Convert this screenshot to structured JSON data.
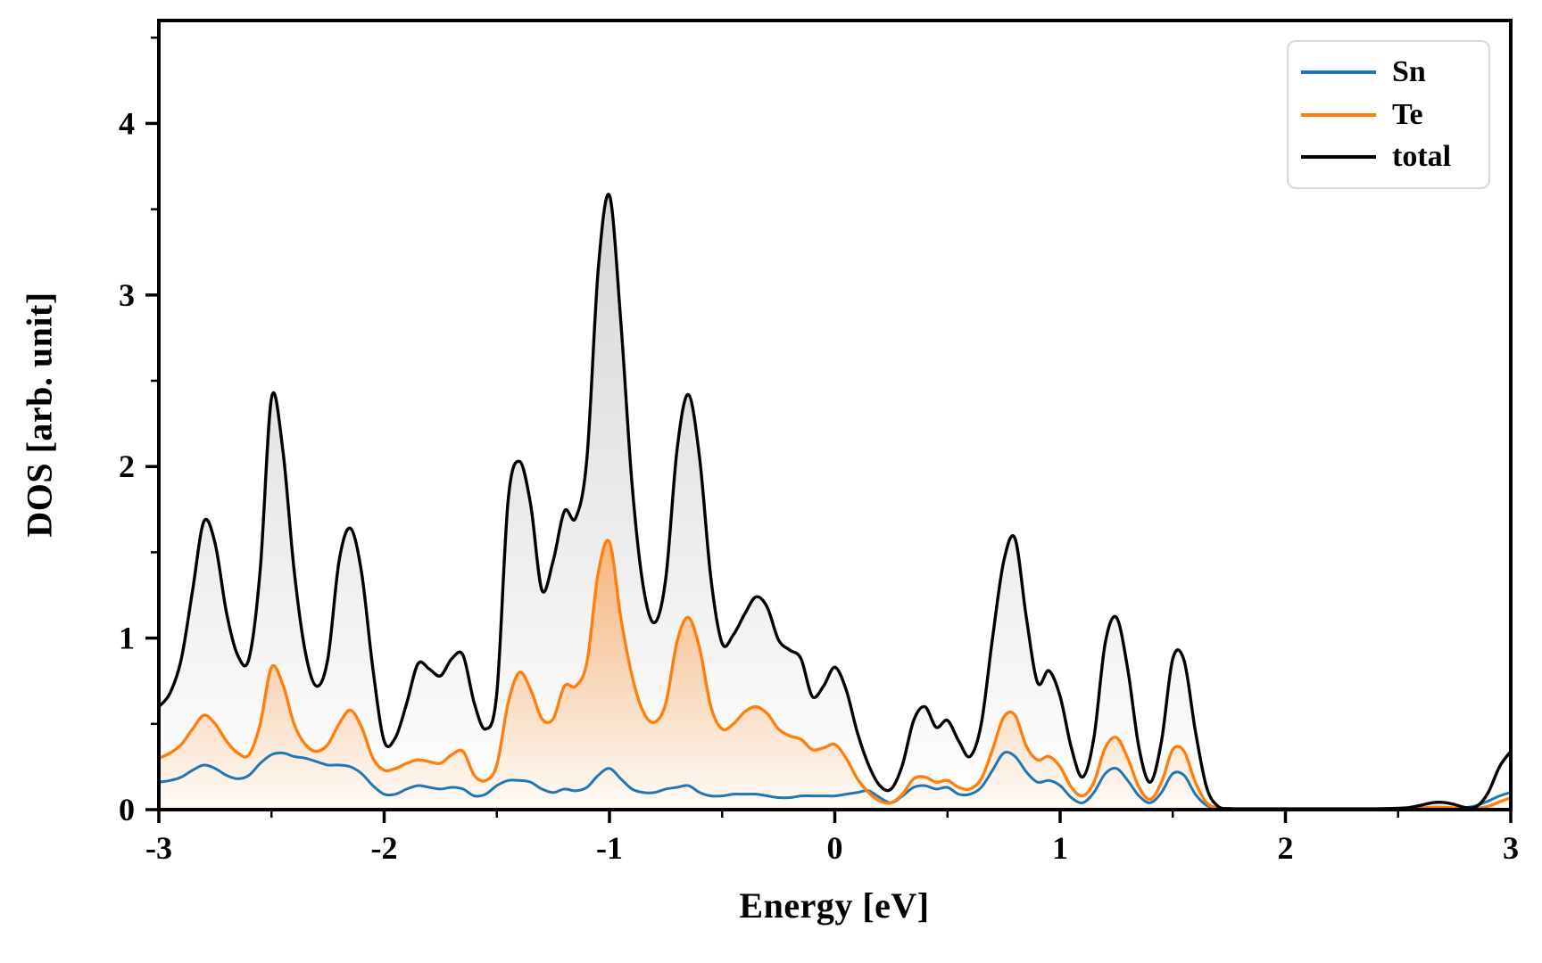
{
  "figure": {
    "background": "#ffffff",
    "spine_color": "#000000"
  },
  "chart_data": {
    "type": "line",
    "title": "",
    "xlabel": "Energy [eV]",
    "ylabel": "DOS [arb. unit]",
    "xlim": [
      -3,
      3
    ],
    "ylim": [
      0,
      4.6
    ],
    "grid": false,
    "legend_position": "upper right",
    "x_ticks": [
      -3,
      -2,
      -1,
      0,
      1,
      2,
      3
    ],
    "x_tick_labels": [
      "-3",
      "-2",
      "-1",
      "0",
      "1",
      "2",
      "3"
    ],
    "x_minor_ticks": [
      -2.5,
      -1.5,
      -0.5,
      0.5,
      1.5,
      2.5
    ],
    "y_ticks": [
      0,
      1,
      2,
      3,
      4
    ],
    "y_tick_labels": [
      "0",
      "1",
      "2",
      "3",
      "4"
    ],
    "y_minor_ticks": [
      0.5,
      1.5,
      2.5,
      3.5,
      4.5
    ],
    "x_start": -3,
    "x_step": 0.05,
    "series": [
      {
        "name": "Sn",
        "color": "#1f77b4",
        "line_width": 3.0,
        "fill": false,
        "values": [
          0.16,
          0.17,
          0.19,
          0.23,
          0.26,
          0.24,
          0.2,
          0.18,
          0.2,
          0.27,
          0.32,
          0.33,
          0.31,
          0.3,
          0.28,
          0.26,
          0.26,
          0.25,
          0.21,
          0.14,
          0.09,
          0.09,
          0.12,
          0.14,
          0.13,
          0.12,
          0.13,
          0.12,
          0.08,
          0.09,
          0.14,
          0.17,
          0.17,
          0.16,
          0.12,
          0.1,
          0.12,
          0.11,
          0.13,
          0.2,
          0.24,
          0.18,
          0.12,
          0.1,
          0.1,
          0.12,
          0.13,
          0.14,
          0.1,
          0.08,
          0.08,
          0.09,
          0.09,
          0.09,
          0.08,
          0.07,
          0.07,
          0.08,
          0.08,
          0.08,
          0.08,
          0.09,
          0.1,
          0.11,
          0.07,
          0.04,
          0.08,
          0.13,
          0.14,
          0.12,
          0.13,
          0.09,
          0.09,
          0.13,
          0.23,
          0.33,
          0.31,
          0.22,
          0.16,
          0.17,
          0.14,
          0.07,
          0.04,
          0.1,
          0.21,
          0.24,
          0.17,
          0.08,
          0.04,
          0.1,
          0.21,
          0.2,
          0.09,
          0.025,
          0.006,
          0.004,
          0.004,
          0.004,
          0.004,
          0.004,
          0.004,
          0.004,
          0.004,
          0.004,
          0.004,
          0.004,
          0.004,
          0.004,
          0.004,
          0.004,
          0.004,
          0.004,
          0.005,
          0.007,
          0.009,
          0.008,
          0.012,
          0.025,
          0.05,
          0.08,
          0.1
        ]
      },
      {
        "name": "Te",
        "color": "#ff7f0e",
        "line_width": 3.4,
        "fill": true,
        "fill_top_rgba": "rgba(255,127,14,0.50)",
        "fill_bottom_rgba": "rgba(255,127,14,0.03)",
        "values": [
          0.3,
          0.33,
          0.38,
          0.47,
          0.55,
          0.5,
          0.4,
          0.33,
          0.32,
          0.5,
          0.83,
          0.73,
          0.5,
          0.38,
          0.34,
          0.38,
          0.5,
          0.58,
          0.48,
          0.3,
          0.23,
          0.24,
          0.27,
          0.29,
          0.28,
          0.27,
          0.32,
          0.34,
          0.2,
          0.17,
          0.26,
          0.62,
          0.8,
          0.7,
          0.53,
          0.53,
          0.72,
          0.72,
          0.86,
          1.38,
          1.56,
          1.12,
          0.78,
          0.57,
          0.51,
          0.62,
          0.98,
          1.12,
          0.94,
          0.6,
          0.47,
          0.5,
          0.57,
          0.6,
          0.56,
          0.47,
          0.43,
          0.41,
          0.35,
          0.36,
          0.38,
          0.3,
          0.18,
          0.1,
          0.05,
          0.04,
          0.09,
          0.18,
          0.19,
          0.16,
          0.17,
          0.13,
          0.12,
          0.18,
          0.35,
          0.54,
          0.55,
          0.37,
          0.29,
          0.31,
          0.25,
          0.13,
          0.08,
          0.16,
          0.36,
          0.42,
          0.3,
          0.13,
          0.06,
          0.16,
          0.35,
          0.34,
          0.16,
          0.04,
          0.01,
          0.004,
          0.004,
          0.004,
          0.004,
          0.004,
          0.004,
          0.004,
          0.004,
          0.004,
          0.004,
          0.004,
          0.004,
          0.004,
          0.004,
          0.004,
          0.004,
          0.006,
          0.01,
          0.014,
          0.014,
          0.01,
          0.006,
          0.008,
          0.02,
          0.045,
          0.07
        ]
      },
      {
        "name": "total",
        "color": "#000000",
        "line_width": 3.4,
        "fill": true,
        "fill_top_rgba": "rgba(0,0,0,0.16)",
        "fill_bottom_rgba": "rgba(0,0,0,0.0)",
        "values": [
          0.6,
          0.68,
          0.88,
          1.28,
          1.68,
          1.55,
          1.15,
          0.9,
          0.88,
          1.4,
          2.4,
          2.1,
          1.4,
          0.92,
          0.72,
          0.88,
          1.45,
          1.64,
          1.38,
          0.82,
          0.4,
          0.42,
          0.62,
          0.85,
          0.82,
          0.78,
          0.88,
          0.9,
          0.62,
          0.47,
          0.68,
          1.8,
          2.03,
          1.78,
          1.28,
          1.45,
          1.74,
          1.7,
          2.05,
          3.15,
          3.58,
          2.85,
          1.9,
          1.3,
          1.09,
          1.35,
          2.1,
          2.42,
          2.05,
          1.35,
          0.97,
          1.02,
          1.14,
          1.24,
          1.18,
          0.99,
          0.93,
          0.88,
          0.66,
          0.72,
          0.83,
          0.7,
          0.45,
          0.26,
          0.14,
          0.12,
          0.26,
          0.52,
          0.6,
          0.48,
          0.52,
          0.4,
          0.31,
          0.5,
          1.0,
          1.45,
          1.58,
          1.12,
          0.74,
          0.81,
          0.66,
          0.36,
          0.19,
          0.42,
          0.97,
          1.12,
          0.82,
          0.36,
          0.16,
          0.4,
          0.88,
          0.87,
          0.46,
          0.13,
          0.02,
          0.006,
          0.005,
          0.005,
          0.005,
          0.005,
          0.005,
          0.005,
          0.005,
          0.005,
          0.005,
          0.005,
          0.005,
          0.005,
          0.005,
          0.006,
          0.008,
          0.012,
          0.025,
          0.04,
          0.042,
          0.03,
          0.012,
          0.02,
          0.1,
          0.25,
          0.34
        ]
      }
    ]
  }
}
